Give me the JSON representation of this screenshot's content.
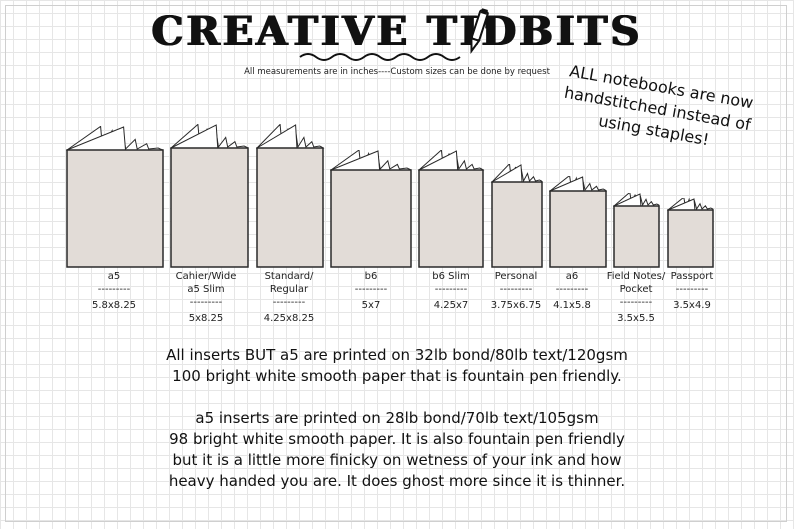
{
  "header": {
    "title": "CREATIVE TIDBITS",
    "subtitle": "All measurements are in inches----Custom sizes can be done by request"
  },
  "note": "ALL notebooks are now handstitched instead of using staples!",
  "sizes": [
    {
      "name": "a5",
      "name2": "",
      "sep": "---------",
      "dims": "5.8x8.25"
    },
    {
      "name": "Cahier/Wide",
      "name2": "a5 Slim",
      "sep": "---------",
      "dims": "5x8.25"
    },
    {
      "name": "Standard/",
      "name2": "Regular",
      "sep": "---------",
      "dims": "4.25x8.25"
    },
    {
      "name": "b6",
      "name2": "",
      "sep": "---------",
      "dims": "5x7"
    },
    {
      "name": "b6 Slim",
      "name2": "",
      "sep": "---------",
      "dims": "4.25x7"
    },
    {
      "name": "Personal",
      "name2": "",
      "sep": "---------",
      "dims": "3.75x6.75"
    },
    {
      "name": "a6",
      "name2": "",
      "sep": "---------",
      "dims": "4.1x5.8"
    },
    {
      "name": "Field Notes/",
      "name2": "Pocket",
      "sep": "---------",
      "dims": "3.5x5.5"
    },
    {
      "name": "Passport",
      "name2": "",
      "sep": "---------",
      "dims": "3.5x4.9"
    }
  ],
  "paragraphs": {
    "p1_l1": "All inserts BUT a5 are printed on 32lb bond/80lb text/120gsm",
    "p1_l2": "100 bright white smooth paper that is fountain pen friendly.",
    "p2_l1": "a5 inserts are printed on 28lb bond/70lb text/105gsm",
    "p2_l2": "98 bright white smooth paper.   It is also fountain pen friendly",
    "p2_l3": "but it is a little more finicky on wetness of your ink and how",
    "p2_l4": "heavy handed you are.  It does ghost more since it is thinner."
  },
  "colors": {
    "cover": "#e2dcd7",
    "outline": "#2a2a2a"
  }
}
